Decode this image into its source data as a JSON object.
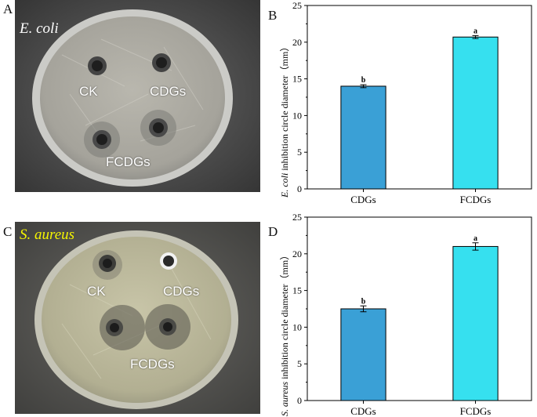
{
  "panels": {
    "A": {
      "letter": "A",
      "title": "E. coli",
      "title_color": "#ffffff",
      "labels": [
        "CK",
        "CDGs",
        "FCDGs"
      ]
    },
    "B": {
      "letter": "B"
    },
    "C": {
      "letter": "C",
      "title": "S. aureus",
      "title_color": "#f5f500",
      "labels": [
        "CK",
        "CDGs",
        "FCDGs"
      ]
    },
    "D": {
      "letter": "D"
    }
  },
  "chart_data": [
    {
      "type": "bar",
      "panel": "B",
      "categories": [
        "CDGs",
        "FCDGs"
      ],
      "values": [
        14.0,
        20.7
      ],
      "errors": [
        0.2,
        0.2
      ],
      "significance": [
        "b",
        "a"
      ],
      "colors": [
        "#3aa0d6",
        "#36e0ef"
      ],
      "ylabel_italic": "E. coli",
      "ylabel_rest": " inhibition circle diameter（mm）",
      "ylim": [
        0,
        25
      ],
      "yticks": [
        "0",
        "5",
        "10",
        "15",
        "20",
        "25"
      ],
      "xlabel": "",
      "title": ""
    },
    {
      "type": "bar",
      "panel": "D",
      "categories": [
        "CDGs",
        "FCDGs"
      ],
      "values": [
        12.5,
        21.0
      ],
      "errors": [
        0.4,
        0.5
      ],
      "significance": [
        "b",
        "a"
      ],
      "colors": [
        "#3aa0d6",
        "#36e0ef"
      ],
      "ylabel_italic": "S. aureus",
      "ylabel_rest": " inhibition circle diameter（mm）",
      "ylim": [
        0,
        25
      ],
      "yticks": [
        "0",
        "5",
        "10",
        "15",
        "20",
        "25"
      ],
      "xlabel": "",
      "title": ""
    }
  ]
}
